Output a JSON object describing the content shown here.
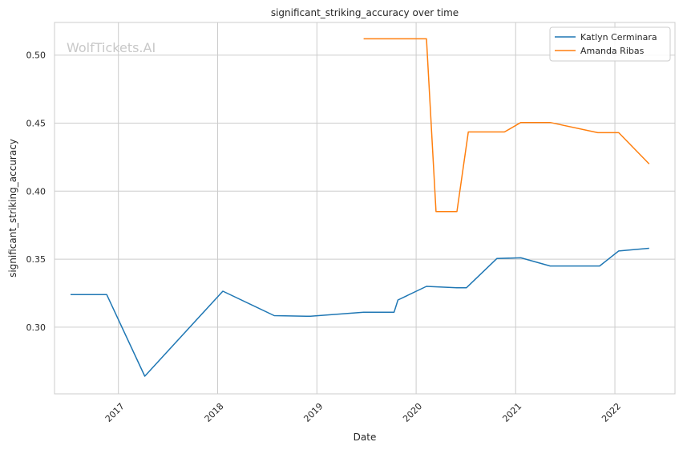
{
  "chart_data": {
    "type": "line",
    "title": "significant_striking_accuracy over time",
    "xlabel": "Date",
    "ylabel": "significant_striking_accuracy",
    "watermark": "WolfTickets.AI",
    "x_ticks": [
      "2017",
      "2018",
      "2019",
      "2020",
      "2021",
      "2022"
    ],
    "y_ticks": [
      "0.30",
      "0.35",
      "0.40",
      "0.45",
      "0.50"
    ],
    "xlim": [
      "2016-05-11",
      "2022-08-10"
    ],
    "ylim": [
      0.251,
      0.524
    ],
    "grid": true,
    "legend_position": "top-right",
    "series": [
      {
        "name": "Katlyn Cerminara",
        "color": "#1f77b4",
        "points": [
          [
            "2016-07-09",
            0.324
          ],
          [
            "2016-11-19",
            0.324
          ],
          [
            "2017-04-08",
            0.264
          ],
          [
            "2018-01-20",
            0.3265
          ],
          [
            "2018-07-28",
            0.3085
          ],
          [
            "2018-12-08",
            0.308
          ],
          [
            "2019-06-22",
            0.311
          ],
          [
            "2019-10-12",
            0.311
          ],
          [
            "2019-10-26",
            0.32
          ],
          [
            "2020-02-08",
            0.33
          ],
          [
            "2020-05-30",
            0.329
          ],
          [
            "2020-07-04",
            0.329
          ],
          [
            "2020-10-24",
            0.3505
          ],
          [
            "2021-01-20",
            0.351
          ],
          [
            "2021-05-08",
            0.345
          ],
          [
            "2021-11-06",
            0.345
          ],
          [
            "2022-01-15",
            0.356
          ],
          [
            "2022-05-07",
            0.358
          ]
        ]
      },
      {
        "name": "Amanda Ribas",
        "color": "#ff7f0e",
        "points": [
          [
            "2019-06-22",
            0.512
          ],
          [
            "2020-02-08",
            0.512
          ],
          [
            "2020-03-14",
            0.385
          ],
          [
            "2020-05-30",
            0.385
          ],
          [
            "2020-07-11",
            0.4435
          ],
          [
            "2020-11-21",
            0.4435
          ],
          [
            "2021-01-20",
            0.4505
          ],
          [
            "2021-05-08",
            0.4505
          ],
          [
            "2021-10-30",
            0.443
          ],
          [
            "2022-01-15",
            0.443
          ],
          [
            "2022-05-07",
            0.42
          ]
        ]
      }
    ]
  }
}
